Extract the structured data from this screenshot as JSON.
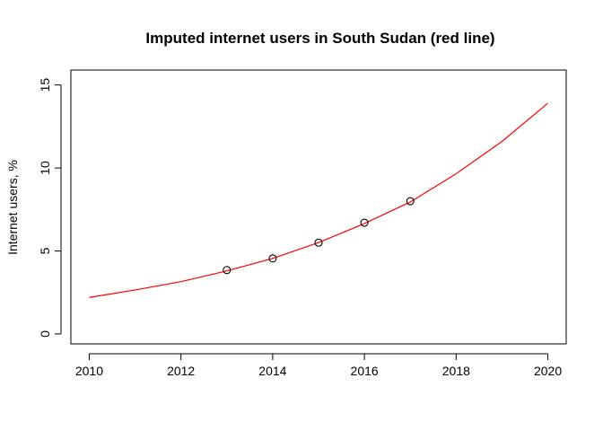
{
  "chart_data": {
    "type": "line",
    "title": "Imputed internet users in South Sudan (red line)",
    "xlabel": "",
    "ylabel": "Internet users, %",
    "xlim": [
      2009.6,
      2020.4
    ],
    "ylim": [
      -0.6,
      15.9
    ],
    "x_ticks": [
      2010,
      2012,
      2014,
      2016,
      2018,
      2020
    ],
    "x_tick_labels": [
      "2010",
      "2012",
      "2014",
      "2016",
      "2018",
      "2020"
    ],
    "y_ticks": [
      0,
      5,
      10,
      15
    ],
    "y_tick_labels": [
      "0",
      "5",
      "10",
      "15"
    ],
    "grid": false,
    "legend": "none",
    "series": [
      {
        "kind": "line",
        "color": "#ff0000",
        "x": [
          2010,
          2011,
          2012,
          2013,
          2014,
          2015,
          2016,
          2017,
          2018,
          2019,
          2020
        ],
        "y": [
          2.2,
          2.65,
          3.15,
          3.8,
          4.55,
          5.5,
          6.65,
          7.95,
          9.65,
          11.6,
          13.9
        ]
      },
      {
        "kind": "points",
        "color": "#000000",
        "marker": "open-circle",
        "x": [
          2013,
          2014,
          2015,
          2016,
          2017
        ],
        "y": [
          3.85,
          4.55,
          5.5,
          6.7,
          8.0
        ]
      }
    ]
  }
}
